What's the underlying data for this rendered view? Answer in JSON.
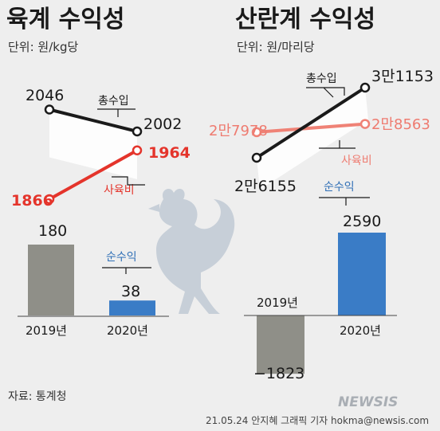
{
  "colors": {
    "black_line": "#1a1a1a",
    "red_line": "#e4342b",
    "pink_line": "#ef8276",
    "gray_bar": "#8f8f88",
    "blue_bar": "#3a7cc6",
    "blue_text": "#2f6fb6",
    "rooster": "#c7cfd8"
  },
  "chart_data": [
    {
      "type": "line",
      "title": "육계 수익성",
      "unit": "단위: 원/kg당",
      "x": [
        "2019년",
        "2020년"
      ],
      "series": [
        {
          "name": "총수입",
          "values": [
            2046,
            2002
          ]
        },
        {
          "name": "사육비",
          "values": [
            1866,
            1964
          ]
        }
      ],
      "bar": {
        "name": "순수익",
        "categories": [
          "2019년",
          "2020년"
        ],
        "values": [
          180,
          38
        ]
      }
    },
    {
      "type": "line",
      "title": "산란계 수익성",
      "unit": "단위: 원/마리당",
      "x": [
        "2019년",
        "2020년"
      ],
      "series": [
        {
          "name": "총수입",
          "values": [
            26155,
            31153
          ]
        },
        {
          "name": "사육비",
          "values": [
            27978,
            28563
          ]
        }
      ],
      "bar": {
        "name": "순수익",
        "categories": [
          "2019년",
          "2020년"
        ],
        "values": [
          -1823,
          2590
        ]
      }
    }
  ],
  "labels": {
    "left_total_2019": "2046",
    "left_total_2020": "2002",
    "left_cost_2019": "1866",
    "left_cost_2020": "1964",
    "left_profit_2019": "180",
    "left_profit_2020": "38",
    "right_total_2019": "2만6155",
    "right_total_2020": "3만1153",
    "right_cost_2019": "2만7978",
    "right_cost_2020": "2만8563",
    "right_profit_2019": "−1823",
    "right_profit_2020": "2590",
    "total_name": "총수입",
    "cost_name": "사육비",
    "profit_name": "순수익",
    "year_2019": "2019년",
    "year_2020": "2020년"
  },
  "footer": {
    "source": "자료: 통계청",
    "credit": "21.05.24 안지혜 그래픽 기자 hokma@newsis.com",
    "logo": "NEWSIS"
  }
}
